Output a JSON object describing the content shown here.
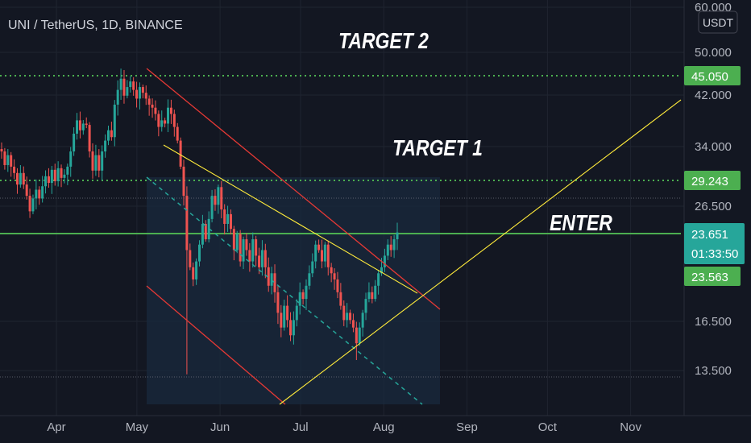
{
  "header": {
    "symbol_title": "UNI / TetherUS, 1D, BINANCE",
    "currency_badge": "USDT"
  },
  "colors": {
    "background": "#131722",
    "up": "#26a69a",
    "down": "#ef5350",
    "level_line": "#4caf50",
    "channel": "#e53935",
    "trend_line": "#ffeb3b",
    "mid_line": "#26a69a",
    "axis_text": "#b2b5be",
    "grid": "#1f2430"
  },
  "annotations": {
    "target2": "TARGET 2",
    "target1": "TARGET 1",
    "enter": "ENTER"
  },
  "price_tags": {
    "target2_price": "45.050",
    "target1_price": "29.243",
    "current_price": "23.651",
    "countdown": "01:33:50",
    "enter_price": "23.563"
  },
  "chart_data": {
    "type": "candlestick",
    "title": "UNI / TetherUS, 1D, BINANCE",
    "y_scale": "log",
    "ylim": [
      11.6,
      60.0
    ],
    "x_range": [
      "2021-03-15",
      "2021-11-25"
    ],
    "x_ticks": [
      {
        "label": "Apr",
        "date": "2021-04-01"
      },
      {
        "label": "May",
        "date": "2021-05-01"
      },
      {
        "label": "Jun",
        "date": "2021-06-01"
      },
      {
        "label": "Jul",
        "date": "2021-07-01"
      },
      {
        "label": "Aug",
        "date": "2021-08-01"
      },
      {
        "label": "Sep",
        "date": "2021-09-01"
      },
      {
        "label": "Oct",
        "date": "2021-10-01"
      },
      {
        "label": "Nov",
        "date": "2021-11-01"
      }
    ],
    "y_ticks": [
      "60.000",
      "50.000",
      "42.000",
      "34.000",
      "26.500",
      "16.500",
      "13.500"
    ],
    "horizontal_levels": [
      {
        "label": "TARGET 2",
        "price": 45.05,
        "style": "dotted"
      },
      {
        "label": "TARGET 1",
        "price": 29.243,
        "style": "dotted"
      },
      {
        "label": "ENTER",
        "price": 23.563,
        "style": "solid"
      }
    ],
    "closes": [
      33.0,
      31.2,
      32.5,
      31.0,
      30.2,
      28.8,
      30.2,
      28.8,
      27.5,
      25.8,
      27.2,
      28.2,
      27.2,
      28.6,
      29.8,
      29.0,
      30.6,
      29.2,
      30.8,
      29.6,
      30.0,
      31.0,
      33.0,
      35.5,
      37.5,
      36.0,
      37.0,
      36.8,
      33.0,
      30.5,
      32.5,
      30.5,
      33.0,
      34.5,
      36.0,
      35.0,
      40.0,
      42.5,
      44.5,
      41.5,
      43.0,
      44.0,
      42.5,
      41.0,
      43.0,
      42.0,
      41.0,
      40.0,
      39.5,
      38.5,
      36.5,
      37.5,
      37.0,
      39.5,
      38.5,
      36.5,
      34.5,
      31.0,
      27.5,
      22.0,
      20.5,
      19.5,
      21.0,
      22.5,
      24.5,
      23.0,
      25.0,
      27.5,
      26.5,
      28.5,
      26.0,
      24.5,
      25.5,
      24.0,
      22.0,
      23.5,
      21.0,
      23.0,
      22.0,
      21.0,
      23.0,
      21.5,
      20.5,
      22.0,
      20.5,
      19.0,
      20.0,
      18.5,
      17.0,
      16.0,
      17.5,
      16.5,
      15.5,
      16.5,
      17.5,
      18.5,
      18.0,
      19.0,
      20.0,
      21.0,
      22.5,
      22.0,
      21.0,
      22.5,
      20.5,
      20.0,
      19.5,
      18.5,
      17.5,
      16.5,
      17.0,
      16.5,
      16.0,
      15.0,
      16.0,
      17.0,
      18.0,
      18.5,
      18.0,
      19.0,
      20.0,
      20.5,
      21.5,
      22.5,
      22.0,
      23.0,
      23.651
    ],
    "channel": {
      "upper": [
        {
          "date": "2021-05-02",
          "price": 48.0
        },
        {
          "date": "2021-08-15",
          "price": 17.3
        }
      ],
      "lower": [
        {
          "date": "2021-05-02",
          "price": 18.7
        },
        {
          "date": "2021-07-10",
          "price": 11.6
        }
      ],
      "mid": [
        {
          "date": "2021-05-02",
          "price": 30.0
        },
        {
          "date": "2021-08-15",
          "price": 11.6
        }
      ]
    },
    "trendlines": [
      {
        "name": "descending",
        "from": {
          "date": "2021-05-10",
          "price": 34.0
        },
        "to": {
          "date": "2021-08-12",
          "price": 19.6
        }
      },
      {
        "name": "ascending",
        "from": {
          "date": "2021-07-04",
          "price": 11.6
        },
        "to": {
          "date": "2021-11-25",
          "price": 41.8
        }
      }
    ]
  }
}
